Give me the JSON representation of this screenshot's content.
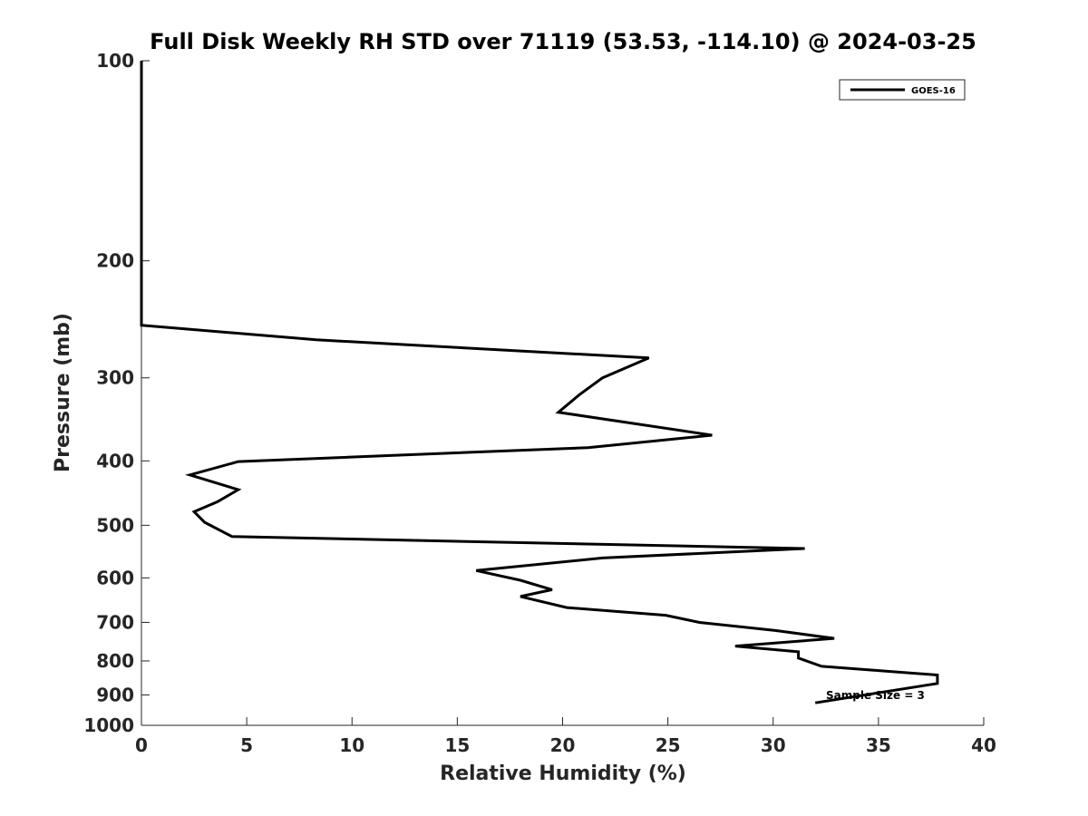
{
  "chart_data": {
    "type": "line",
    "title": "Full Disk Weekly RH STD over 71119 (53.53, -114.10) @ 2024-03-25",
    "xlabel": "Relative Humidity (%)",
    "ylabel": "Pressure (mb)",
    "xlim": [
      0,
      40
    ],
    "ylim": [
      100,
      1000
    ],
    "y_scale": "log",
    "y_reversed": true,
    "grid": false,
    "legend_position": "top-right",
    "x_ticks": [
      0,
      5,
      10,
      15,
      20,
      25,
      30,
      35,
      40
    ],
    "x_tick_labels": [
      "0",
      "5",
      "10",
      "15",
      "20",
      "25",
      "30",
      "35",
      "40"
    ],
    "y_ticks": [
      100,
      200,
      300,
      400,
      500,
      600,
      700,
      800,
      900,
      1000
    ],
    "y_tick_labels": [
      "100",
      "200",
      "300",
      "400",
      "500",
      "600",
      "700",
      "800",
      "900",
      "1000"
    ],
    "annotation": "Sample Size = 3",
    "series": [
      {
        "name": "GOES-16",
        "color": "#000000",
        "x": [
          0,
          0,
          0,
          8.3,
          24.1,
          21.9,
          20.8,
          19.8,
          27.1,
          21.2,
          4.6,
          2.3,
          4.6,
          3.6,
          2.5,
          3.0,
          4.3,
          31.5,
          21.9,
          15.9,
          18.0,
          19.5,
          18.0,
          20.2,
          24.9,
          26.5,
          30.1,
          32.9,
          28.2,
          31.2,
          31.2,
          32.3,
          37.8,
          37.8,
          32.0
        ],
        "y": [
          100,
          150,
          250,
          263,
          280,
          300,
          318,
          338,
          366,
          382,
          401,
          420,
          442,
          461,
          477,
          495,
          520,
          542,
          560,
          585,
          605,
          625,
          640,
          665,
          683,
          700,
          720,
          740,
          760,
          775,
          792,
          815,
          840,
          865,
          925
        ]
      }
    ]
  }
}
